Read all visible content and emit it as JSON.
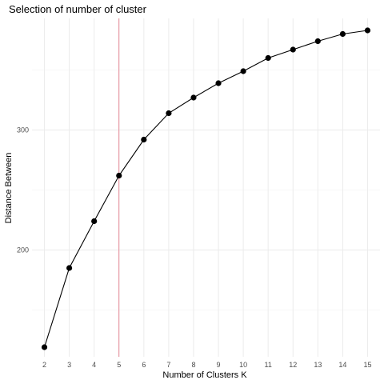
{
  "chart_data": {
    "type": "line",
    "title": "Selection of number of cluster",
    "xlabel": "Number of Clusters K",
    "ylabel": "Distance Between",
    "x": [
      2,
      3,
      4,
      5,
      6,
      7,
      8,
      9,
      10,
      11,
      12,
      13,
      14,
      15
    ],
    "xticks": [
      "2",
      "3",
      "4",
      "5",
      "6",
      "7",
      "8",
      "9",
      "10",
      "11",
      "12",
      "13",
      "14",
      "15"
    ],
    "yticks": [
      200,
      300
    ],
    "xlim": [
      1.5,
      15.5
    ],
    "ylim": [
      111,
      393
    ],
    "series": [
      {
        "values": [
          119,
          185,
          224,
          262,
          292,
          314,
          327,
          339,
          349,
          360,
          367,
          374,
          380,
          383
        ],
        "color": "#000000"
      }
    ],
    "vline": {
      "x": 5,
      "color": "#e07080"
    },
    "grid": true,
    "legend": "none"
  }
}
